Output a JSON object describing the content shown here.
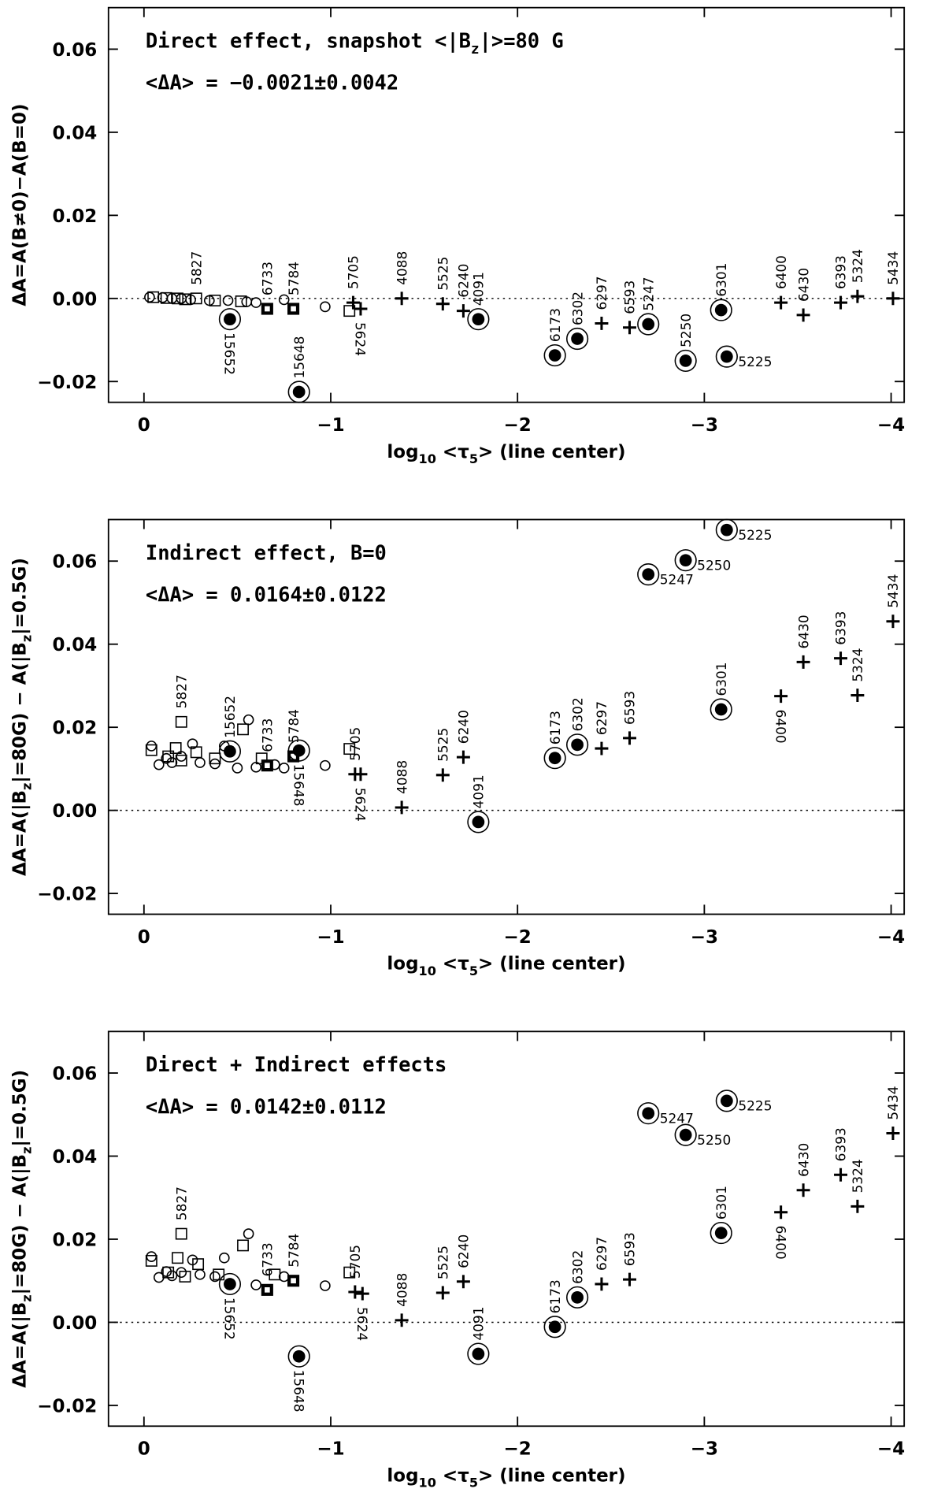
{
  "chart_data": [
    {
      "type": "scatter",
      "annotation": [
        "Direct effect, snapshot <|B",
        "z",
        "|>=80 G"
      ],
      "annotation2": "<ΔA> = −0.0021±0.0042",
      "ylabel": [
        "ΔA=A(B≠0)−A(B=0)"
      ],
      "xlabel": [
        "log",
        "10",
        " <τ",
        "5",
        "> (line center)"
      ],
      "xlim": [
        0.19,
        -4.07
      ],
      "ylim": [
        -0.025,
        0.07
      ],
      "xticks": [
        0,
        {
          "value": -1,
          "label": "−1"
        },
        {
          "value": -2,
          "label": "−2"
        },
        {
          "value": -3,
          "label": "−3"
        },
        {
          "value": -4,
          "label": "−4"
        }
      ],
      "yticks": [
        {
          "value": -0.02,
          "label": "−0.02"
        },
        {
          "value": 0,
          "label": "0.00"
        },
        0.02,
        0.04,
        0.06
      ],
      "hline": 0,
      "series": [
        {
          "marker": "circle",
          "x": [
            -0.03,
            -0.1,
            -0.15,
            -0.2,
            -0.25,
            -0.35,
            -0.45,
            -0.55,
            -0.6,
            -0.75,
            -0.97
          ],
          "values": [
            0.0003,
            0.0002,
            0,
            0,
            -0.0003,
            -0.0005,
            -0.0005,
            -0.0008,
            -0.001,
            -0.0003,
            -0.002
          ]
        },
        {
          "marker": "square",
          "x": [
            -0.05,
            -0.12,
            -0.18,
            -0.22,
            -0.38,
            -0.52,
            -1.1
          ],
          "values": [
            0.0003,
            0.0001,
            0,
            -0.0002,
            -0.0005,
            -0.0007,
            -0.003
          ]
        },
        {
          "marker": "square",
          "x": [
            -0.28
          ],
          "values": [
            0
          ],
          "labels": [
            "5827"
          ]
        },
        {
          "marker": "filled-square",
          "x": [
            -0.66,
            -0.8
          ],
          "values": [
            -0.0025,
            -0.0025
          ],
          "labels": [
            "6733",
            "5784"
          ]
        },
        {
          "marker": "encircled",
          "x": [
            -0.46,
            -0.83,
            -1.79,
            -2.2,
            -2.32,
            -2.7,
            -2.9,
            -3.09,
            -3.12
          ],
          "values": [
            -0.005,
            -0.0225,
            -0.005,
            -0.0137,
            -0.0097,
            -0.0062,
            -0.015,
            -0.0028,
            -0.014
          ],
          "labels": [
            "15652",
            "15648",
            "4091",
            "6173",
            "6302",
            "5247",
            "5250",
            "6301",
            "5225"
          ]
        },
        {
          "marker": "plus",
          "x": [
            -1.12,
            -1.16,
            -1.38,
            -1.6,
            -1.71,
            -2.45,
            -2.6,
            -3.41,
            -3.53,
            -3.73,
            -3.82,
            -4.01
          ],
          "values": [
            -0.001,
            -0.0025,
            0,
            -0.0013,
            -0.003,
            -0.006,
            -0.007,
            -0.001,
            -0.004,
            -0.001,
            0.0005,
            0
          ],
          "labels": [
            "5705",
            "5624",
            "4088",
            "5525",
            "6240",
            "6297",
            "6593",
            "6400",
            "6430",
            "6393",
            "5324",
            "5434"
          ]
        }
      ]
    },
    {
      "type": "scatter",
      "annotation": [
        "Indirect effect, B=0"
      ],
      "annotation2": "<ΔA> = 0.0164±0.0122",
      "ylabel": [
        "ΔA=A(|B",
        "z",
        "|=80G) − A(|B",
        "z",
        "|=0.5G)"
      ],
      "xlabel": [
        "log",
        "10",
        " <τ",
        "5",
        "> (line center)"
      ],
      "xlim": [
        0.19,
        -4.07
      ],
      "ylim": [
        -0.025,
        0.07
      ],
      "xticks": [
        0,
        {
          "value": -1,
          "label": "−1"
        },
        {
          "value": -2,
          "label": "−2"
        },
        {
          "value": -3,
          "label": "−3"
        },
        {
          "value": -4,
          "label": "−4"
        }
      ],
      "yticks": [
        {
          "value": -0.02,
          "label": "−0.02"
        },
        {
          "value": 0,
          "label": "0.00"
        },
        0.02,
        0.04,
        0.06
      ],
      "hline": 0,
      "series": [
        {
          "marker": "circle",
          "x": [
            -0.04,
            -0.08,
            -0.12,
            -0.15,
            -0.2,
            -0.26,
            -0.3,
            -0.38,
            -0.43,
            -0.5,
            -0.56,
            -0.6,
            -0.7,
            -0.75,
            -0.97
          ],
          "values": [
            0.0155,
            0.011,
            0.0125,
            0.0115,
            0.013,
            0.016,
            0.0115,
            0.0112,
            0.0155,
            0.0102,
            0.0218,
            0.0104,
            0.011,
            0.0102,
            0.0108
          ]
        },
        {
          "marker": "square",
          "x": [
            -0.04,
            -0.13,
            -0.17,
            -0.2,
            -0.28,
            -0.38,
            -0.53,
            -0.63,
            -1.1
          ],
          "values": [
            0.0145,
            0.013,
            0.015,
            0.012,
            0.014,
            0.0125,
            0.0195,
            0.0125,
            0.0148
          ]
        },
        {
          "marker": "square",
          "x": [
            -0.2
          ],
          "values": [
            0.0213
          ],
          "labels": [
            "5827"
          ]
        },
        {
          "marker": "filled-square",
          "x": [
            -0.66,
            -0.8
          ],
          "values": [
            0.0108,
            0.013
          ],
          "labels": [
            "6733",
            "5784"
          ]
        },
        {
          "marker": "encircled",
          "x": [
            -0.46,
            -0.83,
            -1.79,
            -2.2,
            -2.32,
            -2.7,
            -2.9,
            -3.09,
            -3.12
          ],
          "values": [
            0.0142,
            0.0144,
            -0.0028,
            0.0126,
            0.0158,
            0.0568,
            0.0602,
            0.0243,
            0.0675
          ],
          "labels": [
            "15652",
            "15648",
            "4091",
            "6173",
            "6302",
            "5247",
            "5250",
            "6301",
            "5225"
          ]
        },
        {
          "marker": "plus",
          "x": [
            -1.13,
            -1.16,
            -1.38,
            -1.6,
            -1.71,
            -2.45,
            -2.6,
            -3.41,
            -3.53,
            -3.73,
            -3.82,
            -4.01
          ],
          "values": [
            0.0087,
            0.0087,
            0.0007,
            0.0085,
            0.0128,
            0.0149,
            0.0174,
            0.0275,
            0.0357,
            0.0366,
            0.0277,
            0.0455
          ],
          "labels": [
            "5705",
            "5624",
            "4088",
            "5525",
            "6240",
            "6297",
            "6593",
            "6400",
            "6430",
            "6393",
            "5324",
            "5434"
          ]
        }
      ]
    },
    {
      "type": "scatter",
      "annotation": [
        "Direct + Indirect effects"
      ],
      "annotation2": "<ΔA> = 0.0142±0.0112",
      "ylabel": [
        "ΔA=A(|B",
        "z",
        "|=80G) − A(|B",
        "z",
        "|=0.5G)"
      ],
      "xlabel": [
        "log",
        "10",
        " <τ",
        "5",
        "> (line center)"
      ],
      "xlim": [
        0.19,
        -4.07
      ],
      "ylim": [
        -0.025,
        0.07
      ],
      "xticks": [
        0,
        {
          "value": -1,
          "label": "−1"
        },
        {
          "value": -2,
          "label": "−2"
        },
        {
          "value": -3,
          "label": "−3"
        },
        {
          "value": -4,
          "label": "−4"
        }
      ],
      "yticks": [
        {
          "value": -0.02,
          "label": "−0.02"
        },
        {
          "value": 0,
          "label": "0.00"
        },
        0.02,
        0.04,
        0.06
      ],
      "hline": 0,
      "series": [
        {
          "marker": "circle",
          "x": [
            -0.04,
            -0.08,
            -0.12,
            -0.15,
            -0.2,
            -0.26,
            -0.3,
            -0.38,
            -0.43,
            -0.56,
            -0.6,
            -0.75,
            -0.97
          ],
          "values": [
            0.0158,
            0.0108,
            0.0122,
            0.0112,
            0.012,
            0.015,
            0.0115,
            0.011,
            0.0155,
            0.0213,
            0.009,
            0.011,
            0.0088
          ]
        },
        {
          "marker": "square",
          "x": [
            -0.04,
            -0.13,
            -0.18,
            -0.22,
            -0.29,
            -0.4,
            -0.53,
            -0.7,
            -1.1
          ],
          "values": [
            0.0148,
            0.012,
            0.0155,
            0.011,
            0.014,
            0.0115,
            0.0185,
            0.0115,
            0.012
          ]
        },
        {
          "marker": "square",
          "x": [
            -0.2
          ],
          "values": [
            0.0213
          ],
          "labels": [
            "5827"
          ]
        },
        {
          "marker": "filled-square",
          "x": [
            -0.66,
            -0.8
          ],
          "values": [
            0.0078,
            0.01
          ],
          "labels": [
            "6733",
            "5784"
          ]
        },
        {
          "marker": "encircled",
          "x": [
            -0.46,
            -0.83,
            -1.79,
            -2.2,
            -2.32,
            -2.7,
            -2.9,
            -3.09,
            -3.12
          ],
          "values": [
            0.0092,
            -0.0082,
            -0.0076,
            -0.0011,
            0.006,
            0.0503,
            0.0451,
            0.0215,
            0.0533
          ],
          "labels": [
            "15652",
            "15648",
            "4091",
            "6173",
            "6302",
            "5247",
            "5250",
            "6301",
            "5225"
          ]
        },
        {
          "marker": "plus",
          "x": [
            -1.13,
            -1.17,
            -1.38,
            -1.6,
            -1.71,
            -2.45,
            -2.6,
            -3.41,
            -3.53,
            -3.73,
            -3.82,
            -4.01
          ],
          "values": [
            0.0073,
            0.0069,
            0.0005,
            0.0071,
            0.0098,
            0.0092,
            0.0103,
            0.0265,
            0.0318,
            0.0355,
            0.0279,
            0.0455
          ],
          "labels": [
            "5705",
            "5624",
            "4088",
            "5525",
            "6240",
            "6297",
            "6593",
            "6400",
            "6430",
            "6393",
            "5324",
            "5434"
          ]
        }
      ]
    }
  ]
}
